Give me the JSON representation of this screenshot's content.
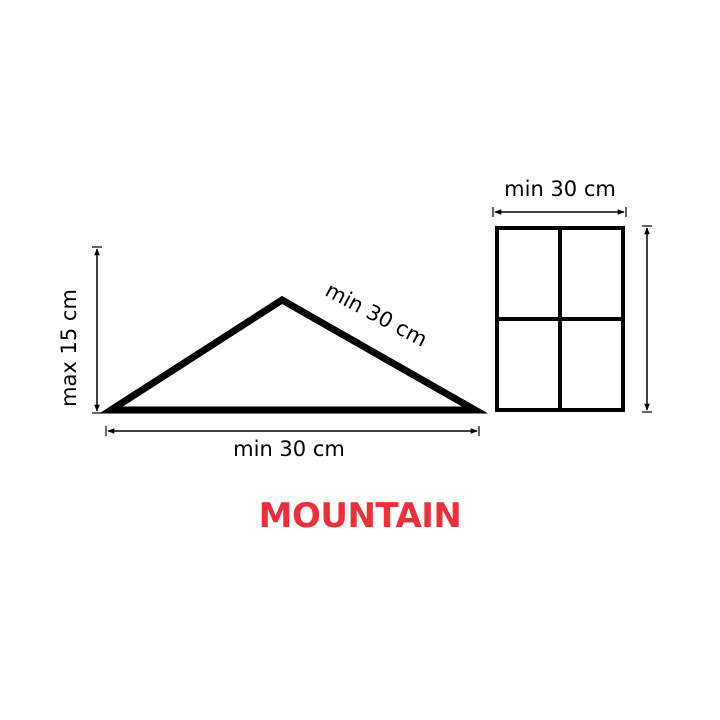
{
  "colors": {
    "shape": "#000000",
    "title": "#e8313a",
    "background": "#ffffff"
  },
  "mountain": {
    "height_label": "max 15 cm",
    "slope_label": "min 30 cm",
    "base_label": "min 30 cm"
  },
  "panel": {
    "width_label": "min 30 cm"
  },
  "title": "MOUNTAIN"
}
